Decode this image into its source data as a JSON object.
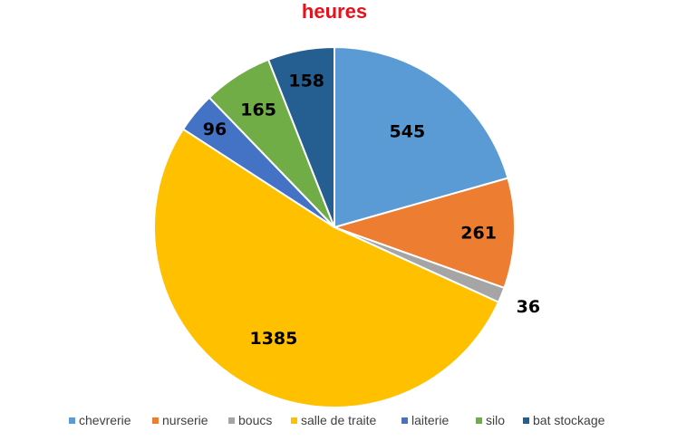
{
  "chart_data": {
    "type": "pie",
    "title": "heures",
    "title_color": "#e8101a",
    "categories": [
      "chevrerie",
      "nurserie",
      "boucs",
      "salle de traite",
      "laiterie",
      "silo",
      "bat stockage"
    ],
    "values": [
      545,
      261,
      36,
      1385,
      96,
      165,
      158
    ],
    "colors": [
      "#5b9bd5",
      "#ed7d31",
      "#a5a5a5",
      "#ffc000",
      "#4472c4",
      "#70ad47",
      "#255e91"
    ],
    "data_labels": [
      "545",
      "261",
      "36",
      "1385",
      "96",
      "165",
      "158"
    ],
    "legend_position": "bottom",
    "start_angle": "top (12 o'clock), clockwise"
  }
}
